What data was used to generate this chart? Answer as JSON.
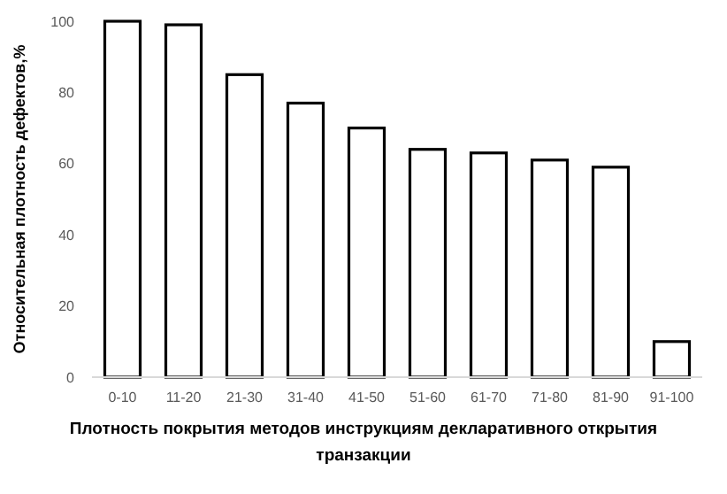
{
  "chart_data": {
    "type": "bar",
    "xlabel": "Плотность покрытия методов инструкциям декларативного открытия транзакции",
    "ylabel": "Относительная плотность дефектов,%",
    "categories": [
      "0-10",
      "11-20",
      "21-30",
      "31-40",
      "41-50",
      "51-60",
      "61-70",
      "71-80",
      "81-90",
      "91-100"
    ],
    "values": [
      100,
      99,
      85,
      77,
      70,
      64,
      63,
      61,
      59,
      10
    ],
    "color": "#ffffff",
    "ylim": [
      0,
      100
    ],
    "yticks": [
      0,
      20,
      40,
      60,
      80,
      100
    ],
    "grid": false
  }
}
